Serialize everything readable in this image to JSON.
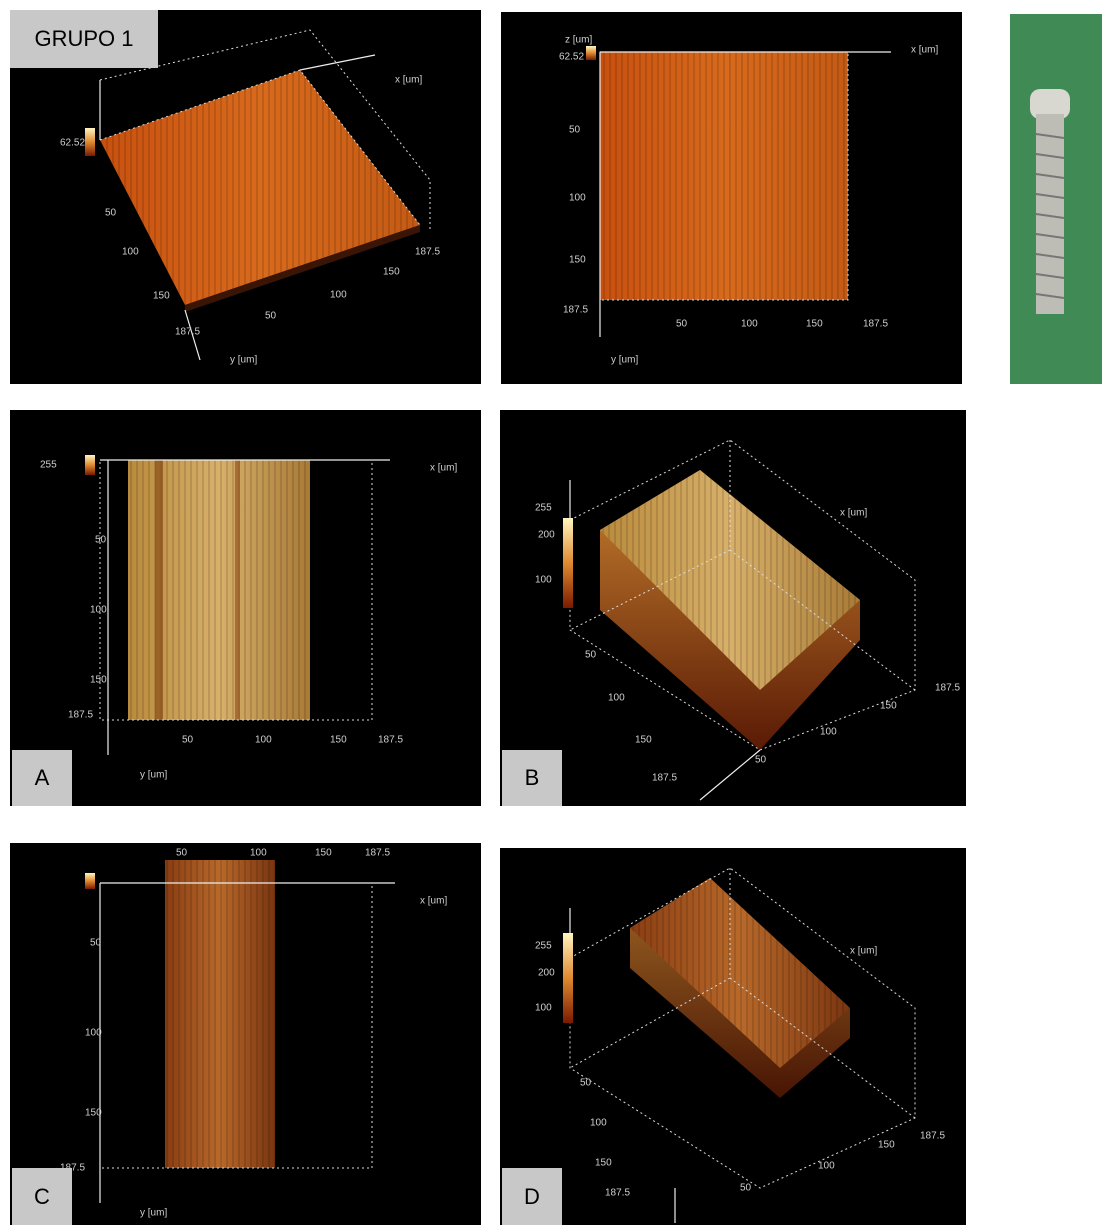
{
  "title": "GRUPO 1",
  "labels": [
    "A",
    "B",
    "C",
    "D"
  ],
  "panels": [
    {
      "texts": [
        "62.52",
        "50",
        "100",
        "150",
        "187.5",
        "50",
        "100",
        "150",
        "187.5",
        "x [um]",
        "y [um]"
      ]
    },
    {
      "texts": [
        "z [um]",
        "62.52",
        "50",
        "100",
        "150",
        "187.5",
        "50",
        "100",
        "150",
        "187.5",
        "x [um]",
        "y [um]"
      ]
    },
    {
      "texts": [
        "255",
        "50",
        "100",
        "150",
        "187.5",
        "50",
        "100",
        "150",
        "187.5",
        "x [um]",
        "y [um]"
      ]
    },
    {
      "texts": [
        "255",
        "200",
        "100",
        "50",
        "100",
        "150",
        "187.5",
        "50",
        "100",
        "150",
        "187.5",
        "x [um]"
      ]
    },
    {
      "texts": [
        "50",
        "100",
        "150",
        "187.5",
        "50",
        "100",
        "150",
        "187.5",
        "x [um]",
        "y [um]"
      ]
    },
    {
      "texts": [
        "255",
        "200",
        "100",
        "50",
        "100",
        "150",
        "187.5",
        "50",
        "100",
        "150",
        "187.5",
        "x [um]"
      ]
    }
  ]
}
